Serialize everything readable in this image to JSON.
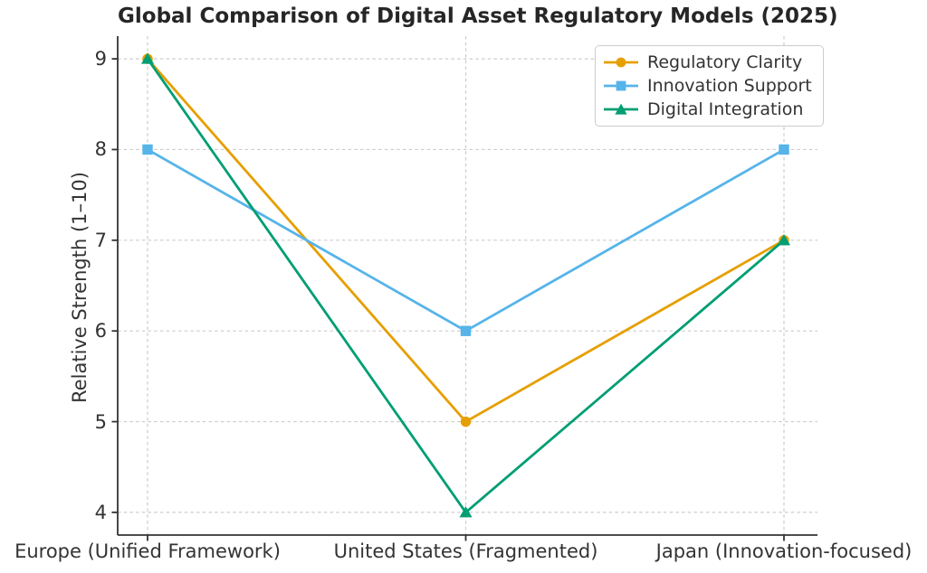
{
  "figure": {
    "background": "#ffffff"
  },
  "chart_data": {
    "type": "line",
    "title": "Global Comparison of Digital Asset Regulatory Models (2025)",
    "xlabel": "",
    "ylabel": "Relative Strength (1–10)",
    "categories": [
      "Europe (Unified Framework)",
      "United States (Fragmented)",
      "Japan (Innovation-focused)"
    ],
    "series": [
      {
        "name": "Regulatory Clarity",
        "marker": "circle",
        "color": "#E69F00",
        "values": [
          9,
          5,
          7
        ]
      },
      {
        "name": "Innovation Support",
        "marker": "square",
        "color": "#56B4E9",
        "values": [
          8,
          6,
          8
        ]
      },
      {
        "name": "Digital Integration",
        "marker": "triangle-up",
        "color": "#009E73",
        "values": [
          9,
          4,
          7
        ]
      }
    ],
    "yticks": [
      4,
      5,
      6,
      7,
      8,
      9
    ],
    "ylim": [
      3.75,
      9.25
    ],
    "grid": "both",
    "grid_style": "dashed",
    "legend_position": "upper-right"
  },
  "style_colors": {
    "grid": "#cccccc",
    "spine": "#333333",
    "tick_label": "#333333",
    "title": "#262626",
    "legend_border": "#cccccc",
    "background": "#ffffff"
  }
}
